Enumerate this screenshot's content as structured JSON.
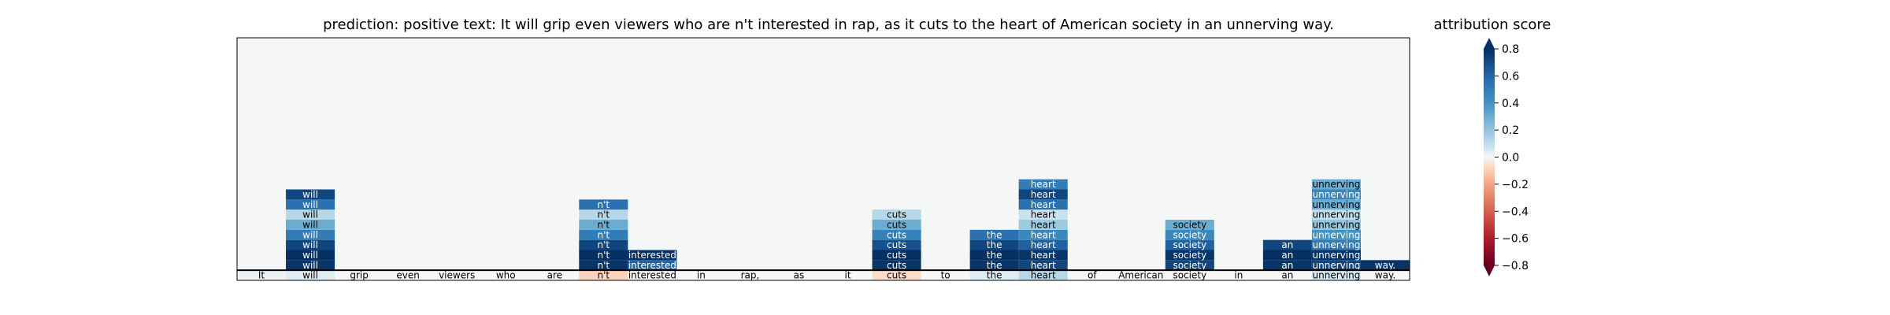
{
  "chart_data": {
    "type": "heatmap",
    "title": "prediction:  positive     text:  It will grip even viewers who are n't interested in rap, as it cuts to the heart of American society in an unnerving way.",
    "tokens": [
      "It",
      "will",
      "grip",
      "even",
      "viewers",
      "who",
      "are",
      "n't",
      "interested",
      "in",
      "rap,",
      "as",
      "it",
      "cuts",
      "to",
      "the",
      "heart",
      "of",
      "American",
      "society",
      "in",
      "an",
      "unnerving",
      "way."
    ],
    "bottom_row_scores": [
      0.02,
      0.04,
      0.0,
      0.0,
      0.0,
      0.0,
      0.0,
      -0.08,
      0.0,
      0.0,
      0.0,
      0.0,
      0.0,
      -0.06,
      0.0,
      0.04,
      0.12,
      0.0,
      0.0,
      0.0,
      0.0,
      0.0,
      0.05,
      0.0
    ],
    "rows_total": 24,
    "stacked_cells": [
      {
        "row": 1,
        "col": 1,
        "score": 0.78
      },
      {
        "row": 1,
        "col": 7,
        "score": 0.78
      },
      {
        "row": 1,
        "col": 8,
        "score": 0.6
      },
      {
        "row": 1,
        "col": 13,
        "score": 0.78
      },
      {
        "row": 1,
        "col": 15,
        "score": 0.78
      },
      {
        "row": 1,
        "col": 16,
        "score": 0.72
      },
      {
        "row": 1,
        "col": 19,
        "score": 0.72
      },
      {
        "row": 1,
        "col": 21,
        "score": 0.78
      },
      {
        "row": 1,
        "col": 22,
        "score": 0.72
      },
      {
        "row": 1,
        "col": 23,
        "score": 0.78
      },
      {
        "row": 2,
        "col": 1,
        "score": 0.85
      },
      {
        "row": 2,
        "col": 7,
        "score": 0.85
      },
      {
        "row": 2,
        "col": 8,
        "score": 0.82
      },
      {
        "row": 2,
        "col": 13,
        "score": 0.8
      },
      {
        "row": 2,
        "col": 15,
        "score": 0.85
      },
      {
        "row": 2,
        "col": 16,
        "score": 0.78
      },
      {
        "row": 2,
        "col": 19,
        "score": 0.78
      },
      {
        "row": 2,
        "col": 21,
        "score": 0.85
      },
      {
        "row": 2,
        "col": 22,
        "score": 0.78
      },
      {
        "row": 3,
        "col": 1,
        "score": 0.72
      },
      {
        "row": 3,
        "col": 7,
        "score": 0.72
      },
      {
        "row": 3,
        "col": 13,
        "score": 0.68
      },
      {
        "row": 3,
        "col": 15,
        "score": 0.72
      },
      {
        "row": 3,
        "col": 16,
        "score": 0.62
      },
      {
        "row": 3,
        "col": 19,
        "score": 0.62
      },
      {
        "row": 3,
        "col": 21,
        "score": 0.72
      },
      {
        "row": 3,
        "col": 22,
        "score": 0.5
      },
      {
        "row": 4,
        "col": 1,
        "score": 0.5
      },
      {
        "row": 4,
        "col": 7,
        "score": 0.5
      },
      {
        "row": 4,
        "col": 13,
        "score": 0.48
      },
      {
        "row": 4,
        "col": 15,
        "score": 0.55
      },
      {
        "row": 4,
        "col": 16,
        "score": 0.45
      },
      {
        "row": 4,
        "col": 19,
        "score": 0.45
      },
      {
        "row": 4,
        "col": 22,
        "score": 0.4
      },
      {
        "row": 5,
        "col": 1,
        "score": 0.3
      },
      {
        "row": 5,
        "col": 7,
        "score": 0.3
      },
      {
        "row": 5,
        "col": 13,
        "score": 0.3
      },
      {
        "row": 5,
        "col": 16,
        "score": 0.18
      },
      {
        "row": 5,
        "col": 19,
        "score": 0.3
      },
      {
        "row": 5,
        "col": 22,
        "score": 0.2
      },
      {
        "row": 6,
        "col": 1,
        "score": 0.12
      },
      {
        "row": 6,
        "col": 7,
        "score": 0.12
      },
      {
        "row": 6,
        "col": 13,
        "score": 0.12
      },
      {
        "row": 6,
        "col": 16,
        "score": 0.08
      },
      {
        "row": 6,
        "col": 22,
        "score": 0.1
      },
      {
        "row": 7,
        "col": 1,
        "score": 0.55
      },
      {
        "row": 7,
        "col": 7,
        "score": 0.55
      },
      {
        "row": 7,
        "col": 16,
        "score": 0.55
      },
      {
        "row": 7,
        "col": 22,
        "score": 0.3
      },
      {
        "row": 8,
        "col": 1,
        "score": 0.72
      },
      {
        "row": 8,
        "col": 16,
        "score": 0.72
      },
      {
        "row": 8,
        "col": 22,
        "score": 0.45
      },
      {
        "row": 9,
        "col": 16,
        "score": 0.5
      },
      {
        "row": 9,
        "col": 22,
        "score": 0.3
      }
    ],
    "colorbar": {
      "label": "attribution score",
      "ticks": [
        "0.8",
        "0.6",
        "0.4",
        "0.2",
        "0.0",
        "−0.2",
        "−0.4",
        "−0.6",
        "−0.8"
      ],
      "tick_values": [
        0.8,
        0.6,
        0.4,
        0.2,
        0.0,
        -0.2,
        -0.4,
        -0.6,
        -0.8
      ],
      "range": [
        -0.8,
        0.8
      ],
      "colormap": "RdBu"
    }
  }
}
